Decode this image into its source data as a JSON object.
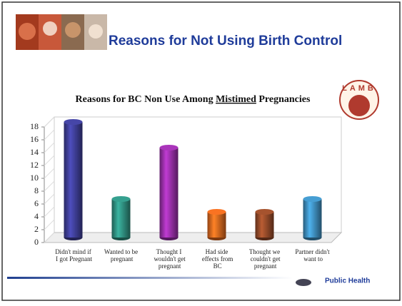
{
  "slide_title": "Reasons for Not Using Birth Control",
  "logo": "LAMB",
  "footer": "Public Health",
  "chart_data": {
    "type": "bar",
    "title_parts": [
      "Reasons for BC Non Use Among",
      "Mistimed",
      "Pregnancies"
    ],
    "categories": [
      "Didn't mind if I got Pregnant",
      "Wanted to be pregnant",
      "Thought I wouldn't get pregnant",
      "Had side effects from BC",
      "Thought we couldn't get pregnant",
      "Partner didn't want to"
    ],
    "values": [
      18,
      6,
      14,
      4,
      4,
      6
    ],
    "colors": [
      "#3a3a8c",
      "#2c8577",
      "#8e2c9c",
      "#d0601c",
      "#8a4526",
      "#3a84b0"
    ],
    "ylim": [
      0,
      18
    ],
    "yticks": [
      0,
      2,
      4,
      6,
      8,
      10,
      12,
      14,
      16,
      18
    ]
  }
}
